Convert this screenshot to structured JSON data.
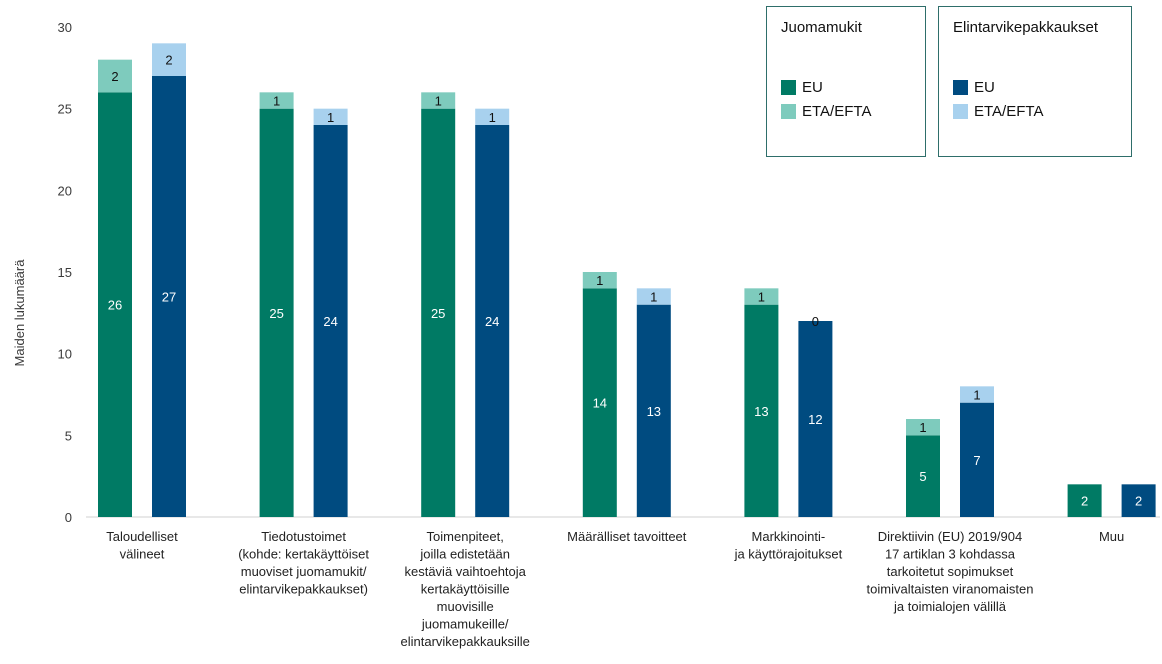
{
  "chart_data": {
    "type": "bar",
    "stacked": true,
    "ylabel": "Maiden lukumäärä",
    "ylim": [
      0,
      30
    ],
    "yticks": [
      0,
      5,
      10,
      15,
      20,
      25,
      30
    ],
    "categories": [
      [
        "Taloudelliset",
        "välineet"
      ],
      [
        "Tiedotustoimet",
        "(kohde: kertakäyttöiset",
        "muoviset juomamukit/",
        "elintarvikepakkaukset)"
      ],
      [
        "Toimenpiteet,",
        "joilla edistetään",
        "kestäviä vaihtoehtoja",
        "kertakäyttöisille",
        "muovisille",
        "juomamukeille/",
        "elintarvikepakkauksille"
      ],
      [
        "Määrälliset tavoitteet"
      ],
      [
        "Markkinointi-",
        "ja käyttörajoitukset"
      ],
      [
        "Direktiivin (EU) 2019/904",
        "17 artiklan 3 kohdassa",
        "tarkoitetut sopimukset",
        "toimivaltaisten viranomaisten",
        "ja toimialojen välillä"
      ],
      [
        "Muu"
      ]
    ],
    "groups": [
      {
        "name": "Juomamukit",
        "series": [
          {
            "name": "EU",
            "color": "#007a64",
            "values": [
              26,
              25,
              25,
              14,
              13,
              5,
              2
            ]
          },
          {
            "name": "ETA/EFTA",
            "color": "#7ecbbd",
            "values": [
              2,
              1,
              1,
              1,
              1,
              1,
              null
            ]
          }
        ]
      },
      {
        "name": "Elintarvikepakkaukset",
        "series": [
          {
            "name": "EU",
            "color": "#004b80",
            "values": [
              27,
              24,
              24,
              13,
              12,
              7,
              2
            ]
          },
          {
            "name": "ETA/EFTA",
            "color": "#a8d1ee",
            "values": [
              2,
              1,
              1,
              1,
              0,
              1,
              null
            ]
          }
        ]
      }
    ]
  }
}
